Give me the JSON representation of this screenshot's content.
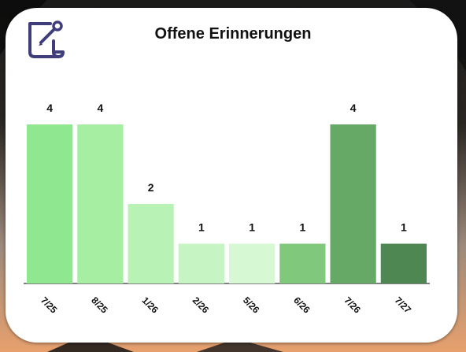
{
  "header": {
    "title": "Offene Erinnerungen",
    "icon": "note-edit-icon"
  },
  "colors": {
    "icon": "#3f3d7a",
    "bars": [
      "#8fe88f",
      "#a6efa2",
      "#b8f2b4",
      "#c6f5c3",
      "#d6f8d3",
      "#80c97c",
      "#66a866",
      "#4f8752"
    ]
  },
  "chart_data": {
    "type": "bar",
    "title": "Offene Erinnerungen",
    "categories": [
      "7/25",
      "8/25",
      "1/26",
      "2/26",
      "5/26",
      "6/26",
      "7/26",
      "7/27"
    ],
    "values": [
      4,
      4,
      2,
      1,
      1,
      1,
      4,
      1
    ],
    "ylim": [
      0,
      4
    ],
    "grid": false,
    "data_labels": true
  }
}
